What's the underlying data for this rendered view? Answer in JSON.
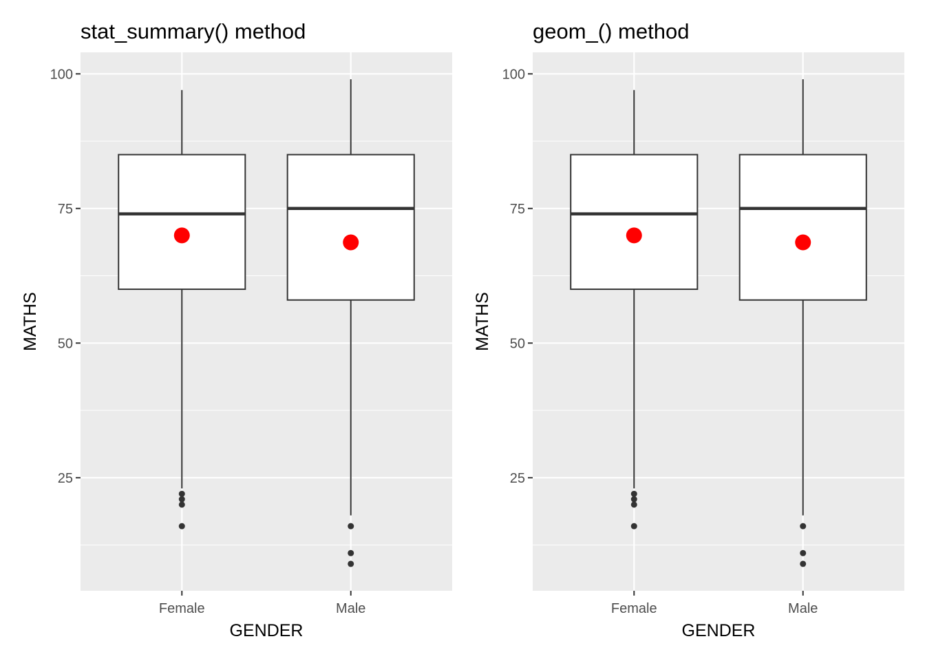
{
  "chart_data": [
    {
      "type": "box",
      "title": "stat_summary() method",
      "xlabel": "GENDER",
      "ylabel": "MATHS",
      "categories": [
        "Female",
        "Male"
      ],
      "ylim": [
        4,
        104
      ],
      "yticks": [
        25,
        50,
        75,
        100
      ],
      "grid": true,
      "boxes": [
        {
          "name": "Female",
          "whisker_low": 23,
          "q1": 60,
          "median": 74,
          "q3": 85,
          "whisker_high": 97,
          "mean": 70,
          "outliers": [
            22,
            21,
            20,
            16
          ]
        },
        {
          "name": "Male",
          "whisker_low": 18,
          "q1": 58,
          "median": 75,
          "q3": 85,
          "whisker_high": 99,
          "mean": 68.7,
          "outliers": [
            16,
            11,
            9
          ]
        }
      ],
      "mean_color": "#ff0000"
    },
    {
      "type": "box",
      "title": "geom_() method",
      "xlabel": "GENDER",
      "ylabel": "MATHS",
      "categories": [
        "Female",
        "Male"
      ],
      "ylim": [
        4,
        104
      ],
      "yticks": [
        25,
        50,
        75,
        100
      ],
      "grid": true,
      "boxes": [
        {
          "name": "Female",
          "whisker_low": 23,
          "q1": 60,
          "median": 74,
          "q3": 85,
          "whisker_high": 97,
          "mean": 70,
          "outliers": [
            22,
            21,
            20,
            16
          ]
        },
        {
          "name": "Male",
          "whisker_low": 18,
          "q1": 58,
          "median": 75,
          "q3": 85,
          "whisker_high": 99,
          "mean": 68.7,
          "outliers": [
            16,
            11,
            9
          ]
        }
      ],
      "mean_color": "#ff0000"
    }
  ],
  "colors": {
    "panel_background": "#ebebeb",
    "grid_line": "#ffffff",
    "box_fill": "#ffffff",
    "box_line": "#333333",
    "outlier": "#333333"
  }
}
